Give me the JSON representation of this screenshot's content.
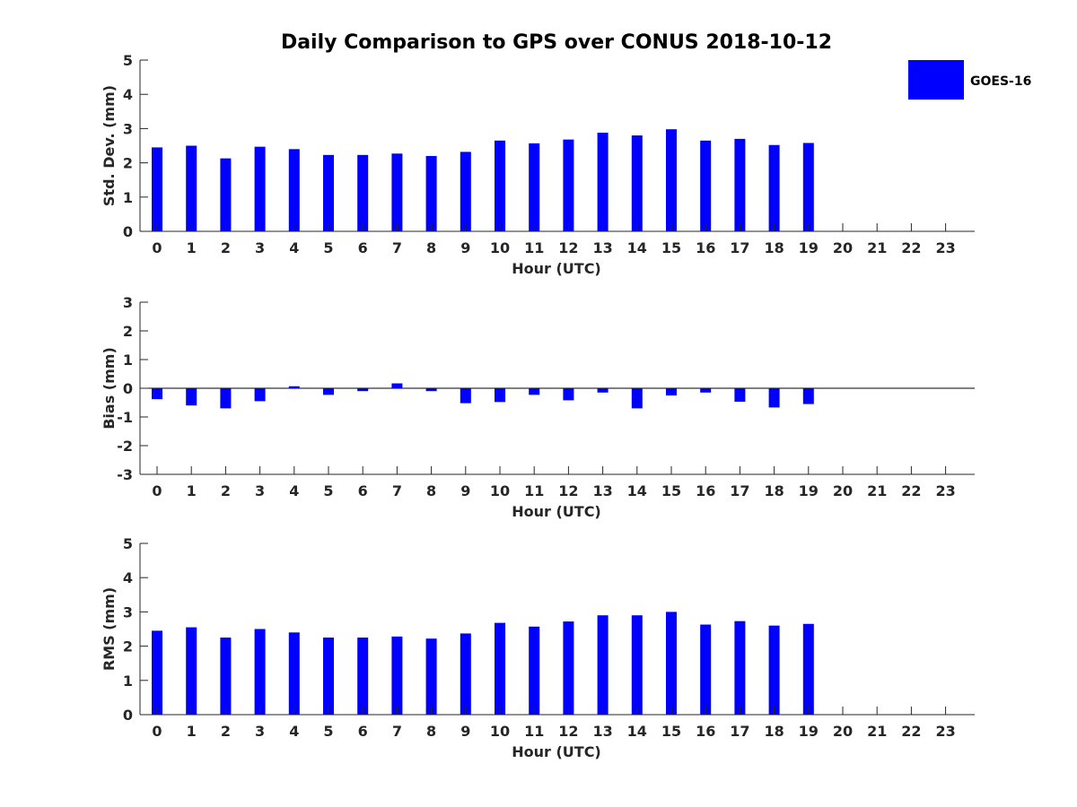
{
  "figure": {
    "title": "Daily Comparison to GPS over CONUS 2018-10-12",
    "legend": {
      "label": "GOES-16",
      "color": "#0000ff",
      "placement": "top-right"
    }
  },
  "chart_data": [
    {
      "type": "bar",
      "title": "Daily Comparison to GPS over CONUS 2018-10-12",
      "xlabel": "Hour (UTC)",
      "ylabel": "Std. Dev. (mm)",
      "ylim": [
        0,
        5
      ],
      "yticks": [
        "0",
        "1",
        "2",
        "3",
        "4",
        "5"
      ],
      "categories": [
        "0",
        "1",
        "2",
        "3",
        "4",
        "5",
        "6",
        "7",
        "8",
        "9",
        "10",
        "11",
        "12",
        "13",
        "14",
        "15",
        "16",
        "17",
        "18",
        "19",
        "20",
        "21",
        "22",
        "23"
      ],
      "series": [
        {
          "name": "GOES-16",
          "color": "#0000ff",
          "values": [
            2.45,
            2.5,
            2.13,
            2.47,
            2.4,
            2.23,
            2.23,
            2.27,
            2.2,
            2.32,
            2.65,
            2.57,
            2.68,
            2.88,
            2.8,
            2.98,
            2.65,
            2.7,
            2.52,
            2.58,
            null,
            null,
            null,
            null
          ]
        }
      ]
    },
    {
      "type": "bar",
      "xlabel": "Hour (UTC)",
      "ylabel": "Bias (mm)",
      "ylim": [
        -3,
        3
      ],
      "yticks": [
        "-3",
        "-2",
        "-1",
        "0",
        "1",
        "2",
        "3"
      ],
      "categories": [
        "0",
        "1",
        "2",
        "3",
        "4",
        "5",
        "6",
        "7",
        "8",
        "9",
        "10",
        "11",
        "12",
        "13",
        "14",
        "15",
        "16",
        "17",
        "18",
        "19",
        "20",
        "21",
        "22",
        "23"
      ],
      "series": [
        {
          "name": "GOES-16",
          "color": "#0000ff",
          "values": [
            -0.38,
            -0.6,
            -0.7,
            -0.45,
            0.07,
            -0.23,
            -0.1,
            0.17,
            -0.1,
            -0.52,
            -0.48,
            -0.23,
            -0.42,
            -0.15,
            -0.7,
            -0.25,
            -0.15,
            -0.47,
            -0.67,
            -0.55,
            null,
            null,
            null,
            null
          ]
        }
      ]
    },
    {
      "type": "bar",
      "xlabel": "Hour (UTC)",
      "ylabel": "RMS (mm)",
      "ylim": [
        0,
        5
      ],
      "yticks": [
        "0",
        "1",
        "2",
        "3",
        "4",
        "5"
      ],
      "categories": [
        "0",
        "1",
        "2",
        "3",
        "4",
        "5",
        "6",
        "7",
        "8",
        "9",
        "10",
        "11",
        "12",
        "13",
        "14",
        "15",
        "16",
        "17",
        "18",
        "19",
        "20",
        "21",
        "22",
        "23"
      ],
      "series": [
        {
          "name": "GOES-16",
          "color": "#0000ff",
          "values": [
            2.45,
            2.55,
            2.25,
            2.5,
            2.4,
            2.25,
            2.25,
            2.28,
            2.22,
            2.37,
            2.68,
            2.57,
            2.72,
            2.9,
            2.9,
            3.0,
            2.63,
            2.73,
            2.6,
            2.65,
            null,
            null,
            null,
            null
          ]
        }
      ]
    }
  ]
}
